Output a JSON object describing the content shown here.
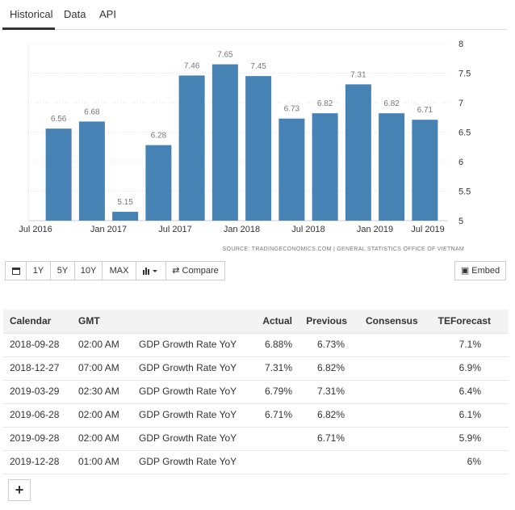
{
  "tabs": [
    "Historical",
    "Data",
    "API"
  ],
  "chart_data": {
    "type": "bar",
    "values": [
      6.56,
      6.68,
      5.15,
      6.28,
      7.46,
      7.65,
      7.45,
      6.73,
      6.82,
      7.31,
      6.82,
      6.71
    ],
    "color": "#4682b4",
    "xtick_labels": [
      "Jul 2016",
      "Jan 2017",
      "Jul 2017",
      "Jan 2018",
      "Jul 2018",
      "Jan 2019",
      "Jul 2019"
    ],
    "ylim": [
      5,
      8
    ],
    "yticks": [
      5,
      5.5,
      6,
      6.5,
      7,
      7.5,
      8
    ],
    "grid": true,
    "source": "SOURCE: TRADINGECONOMICS.COM | GENERAL STATISTICS OFFICE OF VIETNAM"
  },
  "toolbar": {
    "ranges": [
      "1Y",
      "5Y",
      "10Y",
      "MAX"
    ],
    "compare": "Compare",
    "embed": "Embed"
  },
  "table": {
    "headers": {
      "date": "Calendar",
      "time": "GMT",
      "actual": "Actual",
      "previous": "Previous",
      "consensus": "Consensus",
      "forecast": "TEForecast"
    },
    "rows": [
      {
        "date": "2018-09-28",
        "time": "02:00 AM",
        "event": "GDP Growth Rate YoY",
        "actual": "6.88%",
        "previous": "6.73%",
        "forecast": "7.1%"
      },
      {
        "date": "2018-12-27",
        "time": "07:00 AM",
        "event": "GDP Growth Rate YoY",
        "actual": "7.31%",
        "previous": "6.82%",
        "forecast": "6.9%"
      },
      {
        "date": "2019-03-29",
        "time": "02:30 AM",
        "event": "GDP Growth Rate YoY",
        "actual": "6.79%",
        "previous": "7.31%",
        "forecast": "6.4%"
      },
      {
        "date": "2019-06-28",
        "time": "02:00 AM",
        "event": "GDP Growth Rate YoY",
        "actual": "6.71%",
        "previous": "6.82%",
        "forecast": "6.1%"
      },
      {
        "date": "2019-09-28",
        "time": "02:00 AM",
        "event": "GDP Growth Rate YoY",
        "previous": "6.71%",
        "forecast": "5.9%"
      },
      {
        "date": "2019-12-28",
        "time": "01:00 AM",
        "event": "GDP Growth Rate YoY",
        "forecast": "6%"
      }
    ]
  }
}
